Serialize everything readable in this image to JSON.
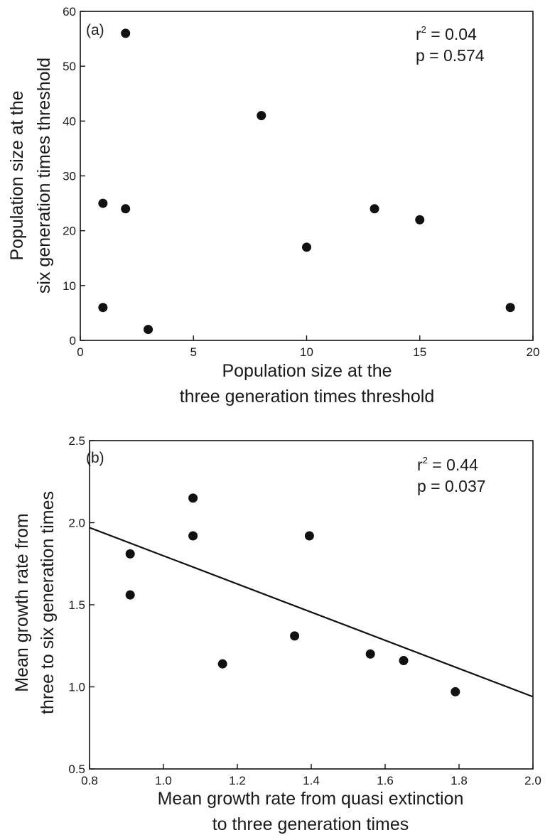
{
  "chart_data": [
    {
      "type": "scatter",
      "panel_label": "(a)",
      "xlabel_lines": [
        "Population size at the",
        "three generation times threshold"
      ],
      "ylabel_lines": [
        "Population size at the",
        "six generation times threshold"
      ],
      "xlim": [
        0,
        20
      ],
      "ylim": [
        0,
        60
      ],
      "xticks": [
        0,
        5,
        10,
        15,
        20
      ],
      "yticks": [
        0,
        10,
        20,
        30,
        40,
        50,
        60
      ],
      "xtick_labels": [
        "0",
        "5",
        "10",
        "15",
        "20"
      ],
      "ytick_labels": [
        "0",
        "10",
        "20",
        "30",
        "40",
        "50",
        "60"
      ],
      "stats": {
        "r2_symbol": "r",
        "r2_sup": "2",
        "r2_text": " = 0.04",
        "p_text": "p = 0.574"
      },
      "points": [
        {
          "x": 1,
          "y": 6
        },
        {
          "x": 1,
          "y": 25
        },
        {
          "x": 2,
          "y": 56
        },
        {
          "x": 2,
          "y": 24
        },
        {
          "x": 3,
          "y": 2
        },
        {
          "x": 8,
          "y": 41
        },
        {
          "x": 10,
          "y": 17
        },
        {
          "x": 13,
          "y": 24
        },
        {
          "x": 15,
          "y": 22
        },
        {
          "x": 19,
          "y": 6
        }
      ],
      "grid": false
    },
    {
      "type": "scatter",
      "panel_label": "(b)",
      "xlabel_lines": [
        "Mean growth rate from quasi extinction",
        "to three generation times"
      ],
      "ylabel_lines": [
        "Mean growth rate from",
        "three to six generation times"
      ],
      "xlim": [
        0.8,
        2.0
      ],
      "ylim": [
        0.5,
        2.5
      ],
      "xticks": [
        0.8,
        1.0,
        1.2,
        1.4,
        1.6,
        1.8,
        2.0
      ],
      "yticks": [
        0.5,
        1.0,
        1.5,
        2.0,
        2.5
      ],
      "xtick_labels": [
        "0.8",
        "1.0",
        "1.2",
        "1.4",
        "1.6",
        "1.8",
        "2.0"
      ],
      "ytick_labels": [
        "0.5",
        "1.0",
        "1.5",
        "2.0",
        "2.5"
      ],
      "stats": {
        "r2_symbol": "r",
        "r2_sup": "2",
        "r2_text": " = 0.44",
        "p_text": "p = 0.037"
      },
      "points": [
        {
          "x": 0.91,
          "y": 1.81
        },
        {
          "x": 0.91,
          "y": 1.56
        },
        {
          "x": 1.08,
          "y": 2.15
        },
        {
          "x": 1.08,
          "y": 1.92
        },
        {
          "x": 1.16,
          "y": 1.14
        },
        {
          "x": 1.355,
          "y": 1.31
        },
        {
          "x": 1.395,
          "y": 1.92
        },
        {
          "x": 1.56,
          "y": 1.2
        },
        {
          "x": 1.65,
          "y": 1.16
        },
        {
          "x": 1.79,
          "y": 0.97
        }
      ],
      "fit_line": {
        "x": [
          0.8,
          2.0
        ],
        "y": [
          1.97,
          0.94
        ]
      },
      "grid": false
    }
  ]
}
